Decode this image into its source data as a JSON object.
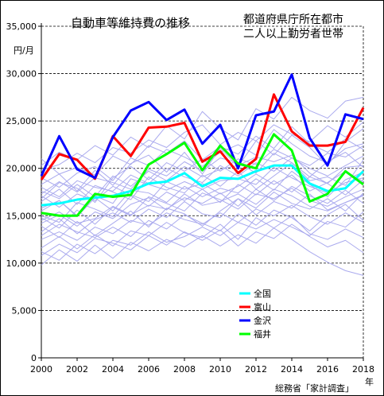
{
  "title": "自動車等維持費の推移",
  "subtitle_line1": "都道府県庁所在都市",
  "subtitle_line2": "二人以上勤労者世帯",
  "y_unit": "円/月",
  "x_unit": "年",
  "source": "総務省「家計調査」",
  "colors": {
    "background_lines": "#aaaaee",
    "zenkoku": "#00ffff",
    "toyama": "#ff0000",
    "kanazawa": "#0000ff",
    "fukui": "#00ff00"
  },
  "chart_data": {
    "type": "line",
    "title": "自動車等維持費の推移",
    "ylabel": "円/月",
    "xlabel": "年",
    "ylim": [
      0,
      35000
    ],
    "yticks": [
      0,
      5000,
      10000,
      15000,
      20000,
      25000,
      30000,
      35000
    ],
    "ytick_labels": [
      "0",
      "5,000",
      "10,000",
      "15,000",
      "20,000",
      "25,000",
      "30,000",
      "35,000"
    ],
    "xlim": [
      2000,
      2018
    ],
    "xticks": [
      2000,
      2002,
      2004,
      2006,
      2008,
      2010,
      2012,
      2014,
      2016,
      2018
    ],
    "xtick_labels": [
      "2000",
      "2002",
      "2004",
      "2006",
      "2008",
      "2010",
      "2012",
      "2014",
      "2016",
      "2018"
    ],
    "grid": "horizontal-dashed",
    "legend_position": "center-right-lower",
    "x": [
      2000,
      2001,
      2002,
      2003,
      2004,
      2005,
      2006,
      2007,
      2008,
      2009,
      2010,
      2011,
      2012,
      2013,
      2014,
      2015,
      2016,
      2017,
      2018
    ],
    "series": [
      {
        "name": "全国",
        "color": "#00ffff",
        "values": [
          16100,
          16300,
          16700,
          16900,
          17100,
          17600,
          18400,
          18600,
          19500,
          18100,
          19000,
          18900,
          19700,
          20300,
          20300,
          18400,
          17600,
          17900,
          19700
        ]
      },
      {
        "name": "富山",
        "color": "#ff0000",
        "values": [
          18800,
          21500,
          20900,
          18900,
          23400,
          21300,
          24300,
          24400,
          24800,
          20700,
          21800,
          19500,
          21000,
          27800,
          23900,
          22400,
          22400,
          22800,
          26400
        ]
      },
      {
        "name": "金沢",
        "color": "#0000ff",
        "values": [
          19200,
          23400,
          19900,
          19000,
          23300,
          26100,
          27000,
          25100,
          26200,
          22600,
          24600,
          20000,
          25600,
          26000,
          29900,
          23200,
          20300,
          25700,
          25200
        ]
      },
      {
        "name": "福井",
        "color": "#00ff00",
        "values": [
          15300,
          15000,
          15000,
          17300,
          17000,
          17200,
          20400,
          21500,
          22700,
          19800,
          22400,
          20500,
          20000,
          23600,
          21900,
          16500,
          17300,
          19700,
          18300
        ]
      }
    ],
    "background_series": [
      [
        15800,
        16600,
        15000,
        17100,
        16300,
        18900,
        18300,
        17700,
        18600,
        17800,
        18700,
        18900,
        18300,
        20100,
        19000,
        18100,
        17400,
        18500,
        19000
      ],
      [
        14200,
        15100,
        13900,
        15400,
        14700,
        16200,
        16900,
        15600,
        17300,
        16100,
        16500,
        17300,
        16200,
        17800,
        17100,
        16000,
        15500,
        16400,
        17100
      ],
      [
        17600,
        16800,
        18300,
        17000,
        19200,
        18100,
        19700,
        18700,
        20200,
        19100,
        19900,
        20300,
        21200,
        20700,
        21400,
        19500,
        18400,
        20100,
        20300
      ],
      [
        12500,
        13300,
        12400,
        13800,
        13100,
        14500,
        14000,
        15300,
        14600,
        14100,
        15300,
        14300,
        15700,
        15000,
        16100,
        14900,
        14100,
        15300,
        14300
      ],
      [
        19000,
        18000,
        19500,
        20200,
        18700,
        21100,
        20300,
        22000,
        21200,
        20200,
        21700,
        22500,
        21400,
        24100,
        22600,
        21300,
        20600,
        22100,
        22600
      ],
      [
        11600,
        12800,
        11500,
        13000,
        11800,
        13400,
        12900,
        14300,
        13200,
        12700,
        14100,
        12500,
        14800,
        13700,
        15000,
        13100,
        12500,
        13600,
        12700
      ],
      [
        16500,
        17800,
        16200,
        18200,
        17500,
        16700,
        19100,
        18000,
        17400,
        19300,
        18100,
        19700,
        17800,
        19200,
        20600,
        18700,
        19100,
        18200,
        20900
      ],
      [
        21000,
        19400,
        20100,
        19300,
        21300,
        20400,
        22400,
        21600,
        22900,
        20900,
        22300,
        21500,
        23400,
        22100,
        24400,
        22600,
        21700,
        23100,
        22000
      ],
      [
        13900,
        12700,
        14400,
        12900,
        14200,
        15500,
        13800,
        15800,
        15200,
        13900,
        15500,
        16800,
        15100,
        16500,
        15800,
        17300,
        15600,
        16400,
        17200
      ],
      [
        9800,
        11400,
        10200,
        11900,
        10500,
        12200,
        11300,
        12500,
        11700,
        12900,
        11800,
        13000,
        12100,
        13700,
        12500,
        11200,
        10100,
        9200,
        8700
      ],
      [
        18300,
        19400,
        17600,
        19800,
        18200,
        20500,
        21400,
        19600,
        21700,
        19400,
        22100,
        20200,
        22900,
        21400,
        23500,
        22200,
        20300,
        22800,
        24200
      ],
      [
        15000,
        14300,
        16400,
        15700,
        14900,
        17100,
        16000,
        17500,
        16600,
        17800,
        16400,
        18300,
        17200,
        18700,
        17500,
        19100,
        18400,
        17200,
        18800
      ],
      [
        20300,
        21700,
        20900,
        22400,
        21400,
        23300,
        22200,
        24500,
        23100,
        26000,
        24200,
        23000,
        26300,
        25200,
        27500,
        26100,
        25300,
        27100,
        27500
      ],
      [
        12900,
        14100,
        13300,
        12700,
        13800,
        12800,
        14500,
        13600,
        15100,
        14200,
        13400,
        15200,
        14000,
        15600,
        14800,
        13400,
        15100,
        16200,
        14500
      ],
      [
        17100,
        15900,
        17300,
        16600,
        18100,
        17200,
        16500,
        18600,
        17800,
        18400,
        17300,
        18100,
        19400,
        18300,
        19300,
        17600,
        18500,
        19700,
        18600
      ],
      [
        16800,
        18500,
        17900,
        16400,
        19000,
        20200,
        18800,
        20600,
        19700,
        21000,
        19700,
        21000,
        20400,
        22000,
        21100,
        20300,
        21600,
        21200,
        22400
      ],
      [
        14800,
        13700,
        15600,
        14100,
        15900,
        15000,
        17000,
        16300,
        15500,
        17400,
        16700,
        15700,
        17300,
        16800,
        17900,
        16600,
        16000,
        17000,
        17800
      ],
      [
        10800,
        12000,
        11100,
        12600,
        12100,
        11400,
        12900,
        11900,
        13300,
        12400,
        13500,
        11800,
        13300,
        12600,
        14100,
        12800,
        11700,
        12400,
        11100
      ],
      [
        18000,
        17000,
        18700,
        18000,
        17600,
        19300,
        18400,
        20000,
        19100,
        18500,
        20300,
        19200,
        20600,
        19700,
        21100,
        20000,
        19200,
        20300,
        21300
      ],
      [
        13300,
        14700,
        13100,
        14600,
        15300,
        14300,
        15700,
        14800,
        16500,
        15200,
        14800,
        16800,
        15800,
        17500,
        16300,
        15700,
        16800,
        15500,
        17400
      ],
      [
        19800,
        20400,
        21600,
        20600,
        22200,
        21600,
        23000,
        22200,
        23800,
        24600,
        22500,
        23800,
        22900,
        24600,
        23600,
        22800,
        24500,
        23300,
        24900
      ],
      [
        15500,
        16600,
        14900,
        16900,
        15500,
        17700,
        17400,
        16400,
        18100,
        17000,
        17900,
        17400,
        18900,
        17700,
        19700,
        18300,
        17000,
        18800,
        19600
      ],
      [
        11200,
        10300,
        12000,
        11000,
        12400,
        11900,
        13300,
        12200,
        12800,
        13800,
        12900,
        14300,
        13600,
        14600,
        13800,
        12900,
        14400,
        13800,
        15400
      ],
      [
        17300,
        18600,
        17500,
        19000,
        18500,
        17800,
        19900,
        19200,
        20700,
        19700,
        21100,
        20600,
        19500,
        21600,
        20600,
        19100,
        20700,
        21700,
        20100
      ],
      [
        14500,
        15400,
        14200,
        14700,
        16000,
        15100,
        16100,
        15700,
        16900,
        16300,
        17400,
        16000,
        17800,
        16600,
        18100,
        17100,
        16300,
        17700,
        16300
      ]
    ]
  }
}
